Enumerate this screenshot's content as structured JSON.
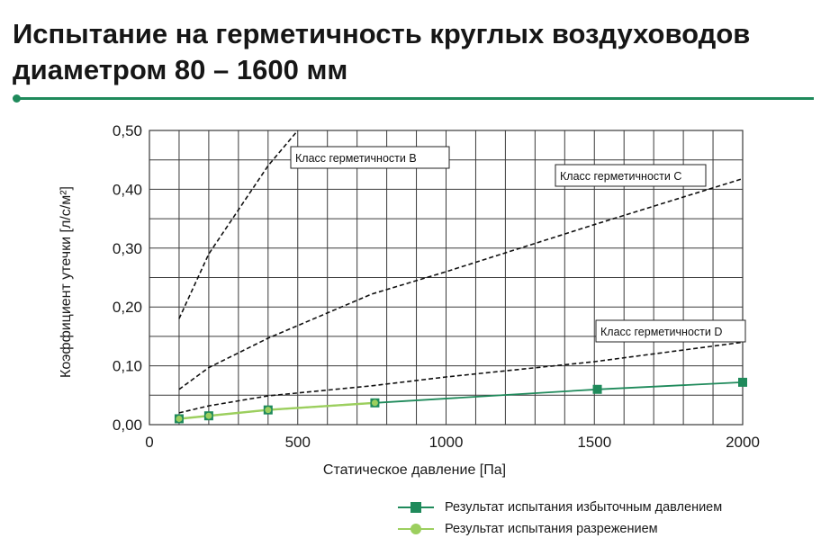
{
  "title": {
    "line1": "Испытание на герметичность круглых воздуховодов",
    "line2": "диаметром 80 – 1600 мм"
  },
  "colors": {
    "accent": "#1f8a5b",
    "pressure_series": "#1f8a5b",
    "vacuum_series": "#9ccf5e",
    "class_lines": "#111111",
    "grid": "#3a3a3a"
  },
  "chart_data": {
    "type": "line",
    "xlabel": "Статическое давление [Па]",
    "ylabel": "Коэффициент утечки [л/с/м²]",
    "xlim": [
      0,
      2000
    ],
    "ylim": [
      0,
      0.5
    ],
    "x_ticks": [
      0,
      500,
      1000,
      1500,
      2000
    ],
    "x_tick_labels": [
      "0",
      "500",
      "1000",
      "1500",
      "2000"
    ],
    "y_ticks": [
      0,
      0.1,
      0.2,
      0.3,
      0.4,
      0.5
    ],
    "y_tick_labels": [
      "0,00",
      "0,10",
      "0,20",
      "0,30",
      "0,40",
      "0,50"
    ],
    "grid": true,
    "grid_x_step": 100,
    "grid_y_step": 0.05,
    "reference_lines": [
      {
        "name": "Класс герметичности B",
        "style": "dashed",
        "points": [
          [
            100,
            0.18
          ],
          [
            200,
            0.29
          ],
          [
            400,
            0.44
          ],
          [
            500,
            0.5
          ]
        ]
      },
      {
        "name": "Класс герметичности C",
        "style": "dashed",
        "points": [
          [
            100,
            0.06
          ],
          [
            200,
            0.097
          ],
          [
            400,
            0.147
          ],
          [
            750,
            0.222
          ],
          [
            1000,
            0.26
          ],
          [
            1500,
            0.34
          ],
          [
            2000,
            0.418
          ]
        ]
      },
      {
        "name": "Класс герметичности D",
        "style": "dashed",
        "points": [
          [
            100,
            0.02
          ],
          [
            200,
            0.032
          ],
          [
            400,
            0.049
          ],
          [
            750,
            0.066
          ],
          [
            1000,
            0.081
          ],
          [
            1500,
            0.107
          ],
          [
            2000,
            0.14
          ]
        ]
      }
    ],
    "series": [
      {
        "name": "Результат испытания избыточным давлением",
        "marker": "square",
        "x": [
          100,
          200,
          400,
          760,
          1510,
          2000
        ],
        "y": [
          0.01,
          0.015,
          0.025,
          0.037,
          0.06,
          0.072
        ]
      },
      {
        "name": "Результат испытания разрежением",
        "marker": "circle",
        "x": [
          100,
          200,
          400,
          760
        ],
        "y": [
          0.01,
          0.015,
          0.025,
          0.037
        ]
      }
    ],
    "legend_position": "bottom-right"
  }
}
